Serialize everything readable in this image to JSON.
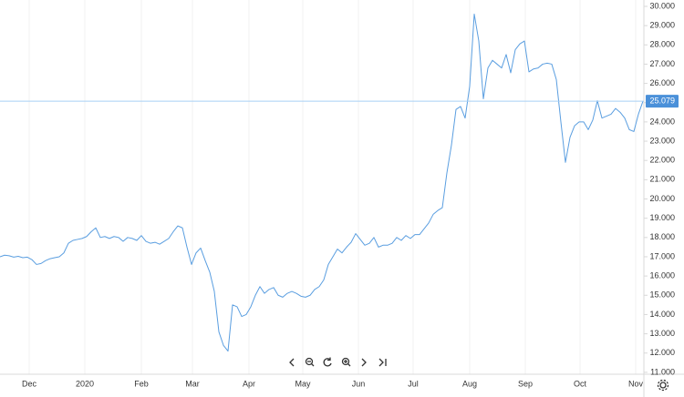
{
  "chart_data": {
    "type": "line",
    "color": "#5a9ee0",
    "categories": [
      null,
      null,
      null,
      null,
      null,
      null,
      null,
      null,
      null,
      null,
      null,
      null,
      null,
      null,
      null,
      null,
      null,
      null,
      null,
      null,
      null,
      null,
      null,
      null,
      null,
      null,
      null,
      null,
      null,
      null,
      null,
      null,
      null,
      null,
      null,
      null,
      null,
      null,
      null,
      null,
      null,
      null,
      null,
      null,
      null,
      null,
      null,
      null,
      null,
      null,
      null,
      null,
      null,
      null,
      null,
      null,
      null,
      null,
      null,
      null,
      null,
      null,
      null,
      null,
      null,
      null,
      null,
      null,
      null,
      null,
      null,
      null,
      null,
      null,
      null,
      null,
      null,
      null,
      null,
      null,
      null,
      null,
      null,
      null,
      null,
      null,
      null,
      null,
      null,
      null,
      null,
      null,
      null,
      null,
      null,
      null,
      null,
      null,
      null,
      null,
      null,
      null,
      null,
      null,
      null,
      null,
      null,
      null,
      null,
      null,
      null,
      null,
      null,
      null,
      null,
      null,
      null,
      null,
      null,
      null,
      null,
      null,
      null,
      null,
      null,
      null,
      null,
      null,
      null,
      null,
      null,
      null,
      null,
      null,
      null,
      null,
      null,
      null,
      null,
      null,
      null,
      null
    ],
    "values": [
      17.0,
      17.08,
      17.05,
      16.98,
      17.02,
      16.95,
      16.98,
      16.85,
      16.6,
      16.65,
      16.8,
      16.9,
      16.95,
      17.0,
      17.2,
      17.7,
      17.85,
      17.9,
      17.95,
      18.05,
      18.3,
      18.5,
      18.0,
      18.05,
      17.95,
      18.05,
      18.0,
      17.8,
      18.0,
      17.95,
      17.85,
      18.1,
      17.8,
      17.7,
      17.75,
      17.65,
      17.8,
      17.95,
      18.3,
      18.6,
      18.5,
      17.5,
      16.6,
      17.2,
      17.45,
      16.8,
      16.2,
      15.2,
      13.1,
      12.4,
      12.1,
      14.5,
      14.4,
      13.9,
      14.0,
      14.4,
      15.0,
      15.45,
      15.1,
      15.3,
      15.4,
      15.0,
      14.9,
      15.1,
      15.2,
      15.1,
      14.95,
      14.9,
      15.0,
      15.3,
      15.45,
      15.8,
      16.6,
      17.0,
      17.4,
      17.2,
      17.5,
      17.75,
      18.2,
      17.9,
      17.6,
      17.7,
      18.0,
      17.5,
      17.6,
      17.6,
      17.7,
      18.0,
      17.85,
      18.1,
      17.95,
      18.15,
      18.15,
      18.45,
      18.75,
      19.2,
      19.4,
      19.55,
      21.35,
      22.8,
      24.65,
      24.8,
      24.2,
      25.85,
      29.6,
      28.2,
      25.2,
      26.8,
      27.2,
      27.0,
      26.8,
      27.5,
      26.55,
      27.75,
      28.05,
      28.2,
      26.6,
      26.75,
      26.8,
      27.0,
      27.05,
      27.0,
      26.2,
      24.0,
      21.9,
      23.2,
      23.8,
      24.0,
      24.0,
      23.6,
      24.1,
      25.1,
      24.2,
      24.3,
      24.4,
      24.7,
      24.5,
      24.2,
      23.6,
      23.5,
      24.4,
      25.079
    ],
    "price_line": {
      "value": 25.079,
      "label": "25.079"
    },
    "xticks": [
      {
        "value": 6.4,
        "label": "Dec"
      },
      {
        "value": 18.6,
        "label": "2020"
      },
      {
        "value": 31,
        "label": "Feb"
      },
      {
        "value": 42.2,
        "label": "Mar"
      },
      {
        "value": 54.6,
        "label": "Apr"
      },
      {
        "value": 66.4,
        "label": "May"
      },
      {
        "value": 78.6,
        "label": "Jun"
      },
      {
        "value": 90.6,
        "label": "Jul"
      },
      {
        "value": 103,
        "label": "Aug"
      },
      {
        "value": 115.2,
        "label": "Sep"
      },
      {
        "value": 127.2,
        "label": "Oct"
      },
      {
        "value": 139.4,
        "label": "Nov"
      }
    ],
    "ylim": [
      10.9,
      30.33
    ],
    "yticks": [
      {
        "value": 11,
        "label": "11.000"
      },
      {
        "value": 12,
        "label": "12.000"
      },
      {
        "value": 13,
        "label": "13.000"
      },
      {
        "value": 14,
        "label": "14.000"
      },
      {
        "value": 15,
        "label": "15.000"
      },
      {
        "value": 16,
        "label": "16.000"
      },
      {
        "value": 17,
        "label": "17.000"
      },
      {
        "value": 18,
        "label": "18.000"
      },
      {
        "value": 19,
        "label": "19.000"
      },
      {
        "value": 20,
        "label": "20.000"
      },
      {
        "value": 21,
        "label": "21.000"
      },
      {
        "value": 22,
        "label": "22.000"
      },
      {
        "value": 23,
        "label": "23.000"
      },
      {
        "value": 24,
        "label": "24.000"
      },
      {
        "value": 25,
        "label": "25.000"
      },
      {
        "value": 26,
        "label": "26.000"
      },
      {
        "value": 27,
        "label": "27.000"
      },
      {
        "value": 28,
        "label": "28.000"
      },
      {
        "value": 29,
        "label": "29.000"
      },
      {
        "value": 30,
        "label": "30.000"
      }
    ],
    "grid": true
  }
}
